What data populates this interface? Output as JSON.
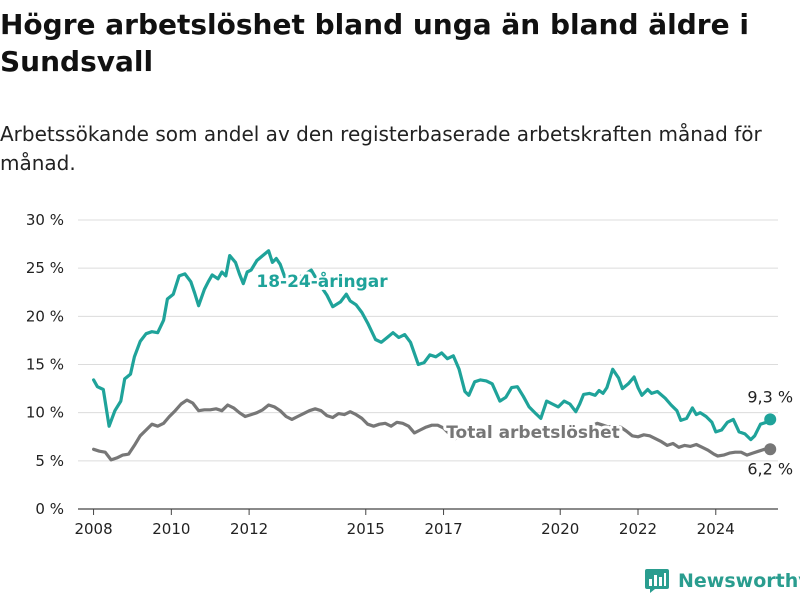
{
  "title": "Högre arbetslöshet bland unga än bland äldre i Sundsvall",
  "subtitle": "Arbetssökande som andel av den registerbaserade arbetskraften månad för månad.",
  "brand": {
    "name": "Newsworthy",
    "color": "#2a9d8f",
    "icon": "bar-chart-logo-icon"
  },
  "chart_data": {
    "type": "line",
    "ylim": [
      0,
      30
    ],
    "xlim": [
      2007.6,
      2025.6
    ],
    "y_ticks": [
      {
        "value": 0,
        "label": "0 %"
      },
      {
        "value": 5,
        "label": "5 %"
      },
      {
        "value": 10,
        "label": "10 %"
      },
      {
        "value": 15,
        "label": "15 %"
      },
      {
        "value": 20,
        "label": "20 %"
      },
      {
        "value": 25,
        "label": "25 %"
      },
      {
        "value": 30,
        "label": "30 %"
      }
    ],
    "x_ticks": [
      {
        "value": 2008,
        "label": "2008"
      },
      {
        "value": 2010,
        "label": "2010"
      },
      {
        "value": 2012,
        "label": "2012"
      },
      {
        "value": 2015,
        "label": "2015"
      },
      {
        "value": 2017,
        "label": "2017"
      },
      {
        "value": 2020,
        "label": "2020"
      },
      {
        "value": 2022,
        "label": "2022"
      },
      {
        "value": 2024,
        "label": "2024"
      }
    ],
    "grid": true,
    "series": [
      {
        "name": "18-24-åringar",
        "color": "#1fa39a",
        "end_label": "9,3 %",
        "points": [
          [
            2008.0,
            13.4
          ],
          [
            2008.1,
            12.7
          ],
          [
            2008.25,
            12.4
          ],
          [
            2008.4,
            8.6
          ],
          [
            2008.55,
            10.2
          ],
          [
            2008.7,
            11.2
          ],
          [
            2008.8,
            13.5
          ],
          [
            2008.95,
            14.0
          ],
          [
            2009.05,
            15.8
          ],
          [
            2009.2,
            17.4
          ],
          [
            2009.35,
            18.2
          ],
          [
            2009.5,
            18.4
          ],
          [
            2009.65,
            18.3
          ],
          [
            2009.8,
            19.6
          ],
          [
            2009.9,
            21.8
          ],
          [
            2010.05,
            22.3
          ],
          [
            2010.2,
            24.2
          ],
          [
            2010.35,
            24.4
          ],
          [
            2010.5,
            23.6
          ],
          [
            2010.6,
            22.4
          ],
          [
            2010.7,
            21.1
          ],
          [
            2010.85,
            22.8
          ],
          [
            2010.95,
            23.6
          ],
          [
            2011.05,
            24.3
          ],
          [
            2011.2,
            23.9
          ],
          [
            2011.3,
            24.6
          ],
          [
            2011.4,
            24.2
          ],
          [
            2011.5,
            26.3
          ],
          [
            2011.65,
            25.6
          ],
          [
            2011.75,
            24.4
          ],
          [
            2011.85,
            23.4
          ],
          [
            2011.95,
            24.6
          ],
          [
            2012.05,
            24.8
          ],
          [
            2012.2,
            25.8
          ],
          [
            2012.35,
            26.3
          ],
          [
            2012.5,
            26.8
          ],
          [
            2012.6,
            25.6
          ],
          [
            2012.7,
            26.0
          ],
          [
            2012.8,
            25.4
          ],
          [
            2012.95,
            23.7
          ],
          [
            2013.1,
            23.2
          ],
          [
            2013.25,
            24.0
          ],
          [
            2013.45,
            24.4
          ],
          [
            2013.6,
            24.8
          ],
          [
            2013.8,
            23.4
          ],
          [
            2014.0,
            22.2
          ],
          [
            2014.15,
            21.0
          ],
          [
            2014.35,
            21.5
          ],
          [
            2014.5,
            22.3
          ],
          [
            2014.6,
            21.6
          ],
          [
            2014.75,
            21.2
          ],
          [
            2014.9,
            20.4
          ],
          [
            2015.05,
            19.3
          ],
          [
            2015.25,
            17.6
          ],
          [
            2015.4,
            17.3
          ],
          [
            2015.55,
            17.8
          ],
          [
            2015.7,
            18.3
          ],
          [
            2015.85,
            17.8
          ],
          [
            2016.0,
            18.1
          ],
          [
            2016.15,
            17.3
          ],
          [
            2016.35,
            15.0
          ],
          [
            2016.5,
            15.2
          ],
          [
            2016.65,
            16.0
          ],
          [
            2016.8,
            15.8
          ],
          [
            2016.95,
            16.2
          ],
          [
            2017.1,
            15.6
          ],
          [
            2017.25,
            15.9
          ],
          [
            2017.4,
            14.5
          ],
          [
            2017.55,
            12.2
          ],
          [
            2017.65,
            11.8
          ],
          [
            2017.8,
            13.2
          ],
          [
            2017.95,
            13.4
          ],
          [
            2018.1,
            13.3
          ],
          [
            2018.25,
            13.0
          ],
          [
            2018.45,
            11.2
          ],
          [
            2018.6,
            11.6
          ],
          [
            2018.75,
            12.6
          ],
          [
            2018.9,
            12.7
          ],
          [
            2019.05,
            11.7
          ],
          [
            2019.2,
            10.6
          ],
          [
            2019.35,
            10.0
          ],
          [
            2019.5,
            9.4
          ],
          [
            2019.65,
            11.2
          ],
          [
            2019.8,
            10.9
          ],
          [
            2019.95,
            10.6
          ],
          [
            2020.1,
            11.2
          ],
          [
            2020.25,
            10.9
          ],
          [
            2020.4,
            10.1
          ],
          [
            2020.5,
            10.9
          ],
          [
            2020.6,
            11.9
          ],
          [
            2020.75,
            12.0
          ],
          [
            2020.9,
            11.8
          ],
          [
            2021.0,
            12.3
          ],
          [
            2021.1,
            12.0
          ],
          [
            2021.2,
            12.6
          ],
          [
            2021.35,
            14.5
          ],
          [
            2021.5,
            13.6
          ],
          [
            2021.6,
            12.5
          ],
          [
            2021.75,
            13.0
          ],
          [
            2021.9,
            13.7
          ],
          [
            2022.0,
            12.6
          ],
          [
            2022.1,
            11.8
          ],
          [
            2022.25,
            12.4
          ],
          [
            2022.35,
            12.0
          ],
          [
            2022.5,
            12.2
          ],
          [
            2022.7,
            11.5
          ],
          [
            2022.85,
            10.8
          ],
          [
            2023.0,
            10.2
          ],
          [
            2023.1,
            9.2
          ],
          [
            2023.25,
            9.4
          ],
          [
            2023.4,
            10.5
          ],
          [
            2023.5,
            9.8
          ],
          [
            2023.6,
            10.0
          ],
          [
            2023.75,
            9.6
          ],
          [
            2023.9,
            9.0
          ],
          [
            2024.0,
            8.0
          ],
          [
            2024.15,
            8.2
          ],
          [
            2024.3,
            9.0
          ],
          [
            2024.45,
            9.3
          ],
          [
            2024.6,
            8.0
          ],
          [
            2024.75,
            7.8
          ],
          [
            2024.9,
            7.2
          ],
          [
            2025.0,
            7.6
          ],
          [
            2025.15,
            8.8
          ],
          [
            2025.3,
            9.0
          ],
          [
            2025.4,
            9.3
          ]
        ]
      },
      {
        "name": "Total arbetslöshet",
        "color": "#777777",
        "end_label": "6,2 %",
        "points": [
          [
            2008.0,
            6.2
          ],
          [
            2008.15,
            6.0
          ],
          [
            2008.3,
            5.9
          ],
          [
            2008.45,
            5.1
          ],
          [
            2008.6,
            5.3
          ],
          [
            2008.75,
            5.6
          ],
          [
            2008.9,
            5.7
          ],
          [
            2009.05,
            6.6
          ],
          [
            2009.2,
            7.6
          ],
          [
            2009.35,
            8.2
          ],
          [
            2009.5,
            8.8
          ],
          [
            2009.65,
            8.6
          ],
          [
            2009.8,
            8.9
          ],
          [
            2009.95,
            9.6
          ],
          [
            2010.1,
            10.2
          ],
          [
            2010.25,
            10.9
          ],
          [
            2010.4,
            11.3
          ],
          [
            2010.55,
            11.0
          ],
          [
            2010.7,
            10.2
          ],
          [
            2010.85,
            10.3
          ],
          [
            2011.0,
            10.3
          ],
          [
            2011.15,
            10.4
          ],
          [
            2011.3,
            10.2
          ],
          [
            2011.45,
            10.8
          ],
          [
            2011.6,
            10.5
          ],
          [
            2011.75,
            10.0
          ],
          [
            2011.9,
            9.6
          ],
          [
            2012.05,
            9.8
          ],
          [
            2012.2,
            10.0
          ],
          [
            2012.35,
            10.3
          ],
          [
            2012.5,
            10.8
          ],
          [
            2012.65,
            10.6
          ],
          [
            2012.8,
            10.2
          ],
          [
            2012.95,
            9.6
          ],
          [
            2013.1,
            9.3
          ],
          [
            2013.25,
            9.6
          ],
          [
            2013.4,
            9.9
          ],
          [
            2013.55,
            10.2
          ],
          [
            2013.7,
            10.4
          ],
          [
            2013.85,
            10.2
          ],
          [
            2014.0,
            9.7
          ],
          [
            2014.15,
            9.5
          ],
          [
            2014.3,
            9.9
          ],
          [
            2014.45,
            9.8
          ],
          [
            2014.6,
            10.1
          ],
          [
            2014.75,
            9.8
          ],
          [
            2014.9,
            9.4
          ],
          [
            2015.05,
            8.8
          ],
          [
            2015.2,
            8.6
          ],
          [
            2015.35,
            8.8
          ],
          [
            2015.5,
            8.9
          ],
          [
            2015.65,
            8.6
          ],
          [
            2015.8,
            9.0
          ],
          [
            2015.95,
            8.9
          ],
          [
            2016.1,
            8.6
          ],
          [
            2016.25,
            7.9
          ],
          [
            2016.4,
            8.2
          ],
          [
            2016.55,
            8.5
          ],
          [
            2016.7,
            8.7
          ],
          [
            2016.85,
            8.7
          ],
          [
            2017.0,
            8.4
          ],
          [
            2017.15,
            7.8
          ],
          [
            2017.3,
            7.3
          ],
          [
            2017.45,
            7.6
          ],
          [
            2020.8,
            8.6
          ],
          [
            2020.95,
            8.9
          ],
          [
            2021.1,
            8.7
          ],
          [
            2021.25,
            8.5
          ],
          [
            2021.4,
            8.7
          ],
          [
            2021.55,
            8.5
          ],
          [
            2021.7,
            8.1
          ],
          [
            2021.85,
            7.6
          ],
          [
            2022.0,
            7.5
          ],
          [
            2022.15,
            7.7
          ],
          [
            2022.3,
            7.6
          ],
          [
            2022.45,
            7.3
          ],
          [
            2022.6,
            7.0
          ],
          [
            2022.75,
            6.6
          ],
          [
            2022.9,
            6.8
          ],
          [
            2023.05,
            6.4
          ],
          [
            2023.2,
            6.6
          ],
          [
            2023.35,
            6.5
          ],
          [
            2023.5,
            6.7
          ],
          [
            2023.65,
            6.4
          ],
          [
            2023.8,
            6.1
          ],
          [
            2023.95,
            5.7
          ],
          [
            2024.05,
            5.5
          ],
          [
            2024.2,
            5.6
          ],
          [
            2024.35,
            5.8
          ],
          [
            2024.5,
            5.9
          ],
          [
            2024.65,
            5.9
          ],
          [
            2024.8,
            5.6
          ],
          [
            2024.95,
            5.8
          ],
          [
            2025.1,
            6.0
          ],
          [
            2025.25,
            6.2
          ],
          [
            2025.4,
            6.2
          ]
        ]
      }
    ]
  }
}
